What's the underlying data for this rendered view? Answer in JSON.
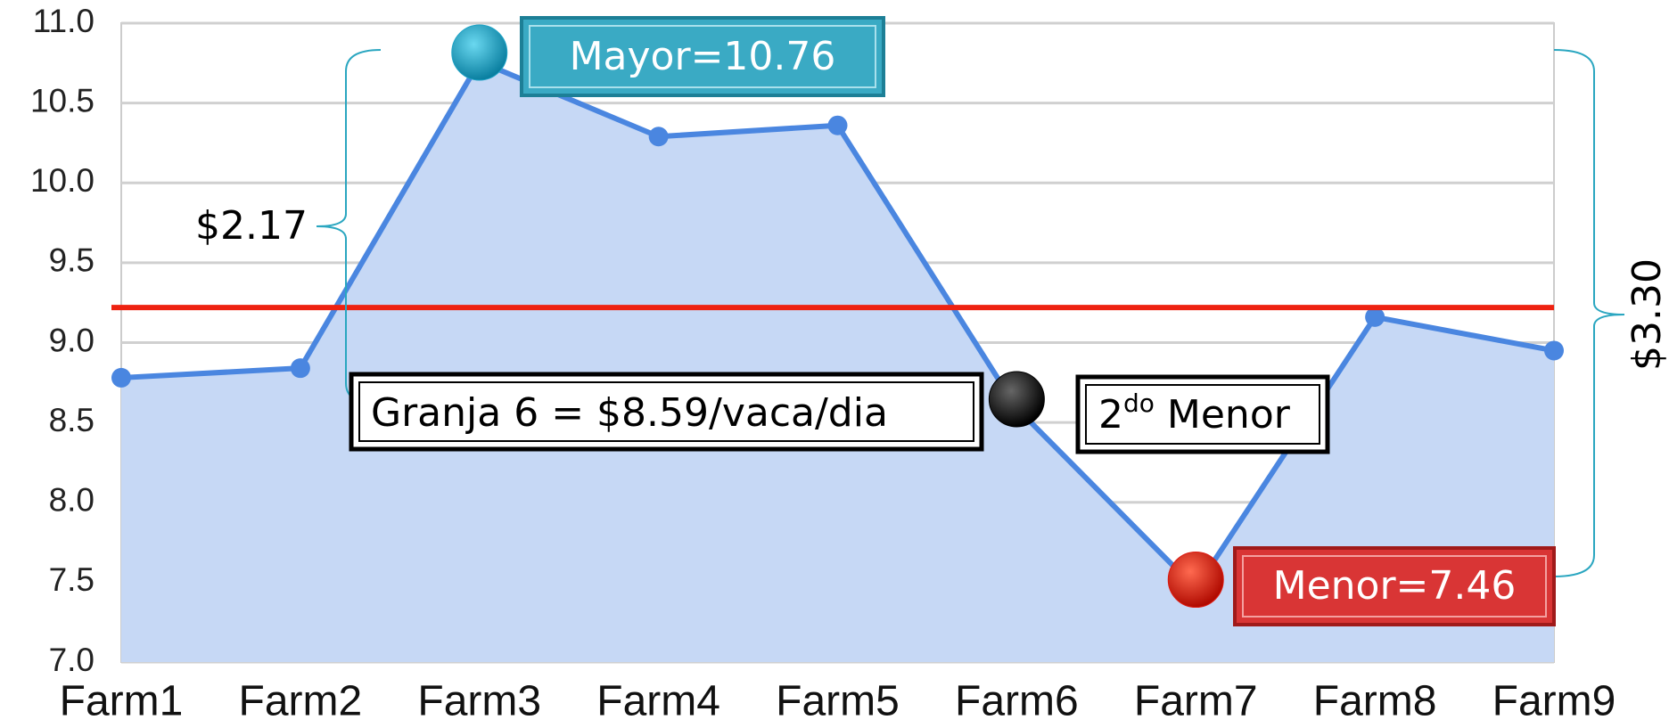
{
  "chart_data": {
    "type": "area",
    "categories": [
      "Farm1",
      "Farm2",
      "Farm3",
      "Farm4",
      "Farm5",
      "Farm6",
      "Farm7",
      "Farm8",
      "Farm9"
    ],
    "values": [
      8.78,
      8.84,
      10.76,
      10.29,
      10.36,
      8.59,
      7.46,
      9.16,
      8.95
    ],
    "color": "#4a86e0",
    "fill": "#c6d8f5",
    "ylim": [
      7.0,
      11.0
    ],
    "yticks": [
      {
        "value": 7,
        "label": "7.0"
      },
      7.5,
      {
        "value": 8,
        "label": "8.0"
      },
      8.5,
      {
        "value": 9,
        "label": "9.0"
      },
      9.5,
      {
        "value": 10,
        "label": "10.0"
      },
      10.5,
      {
        "value": 11,
        "label": "11.0"
      }
    ],
    "grid": true,
    "reference_line": {
      "value": 9.22,
      "color": "#ee2211"
    },
    "annotations": {
      "max": {
        "text": "Mayor=10.76",
        "index": 2,
        "color": "#1fa3c6"
      },
      "min": {
        "text": "Menor=7.46",
        "index": 6,
        "color": "#dd1a10"
      },
      "second_min": {
        "text": [
          "2",
          "do",
          " Menor"
        ],
        "index": 5,
        "color": "#000000"
      },
      "farm6": {
        "text": "Granja 6 = $8.59/vaca/dia"
      },
      "diff_left": {
        "text": "$2.17"
      },
      "diff_right": {
        "text": "$3.30"
      }
    }
  }
}
